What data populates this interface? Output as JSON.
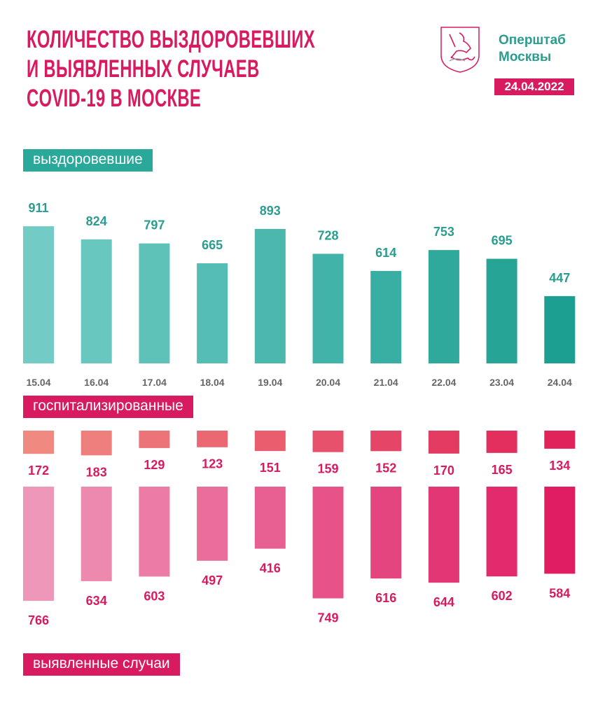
{
  "header": {
    "title_lines": [
      "КОЛИЧЕСТВО ВЫЗДОРОВЕВШИХ",
      "И ВЫЯВЛЕННЫХ СЛУЧАЕВ",
      "COVID-19 В МОСКВЕ"
    ],
    "org_lines": [
      "Оперштаб",
      "Москвы"
    ],
    "date": "24.04.2022",
    "logo_icon": "moscow-coat-of-arms-icon"
  },
  "colors": {
    "title": "#d81b60",
    "teal": "#2aa89a",
    "pink": "#d81b60"
  },
  "chart_data": {
    "type": "bar",
    "title": "Количество выздоровевших и выявленных случаев COVID-19 в Москве",
    "categories": [
      "15.04",
      "16.04",
      "17.04",
      "18.04",
      "19.04",
      "20.04",
      "21.04",
      "22.04",
      "23.04",
      "24.04"
    ],
    "series": [
      {
        "name": "выздоровевшие",
        "values": [
          911,
          824,
          797,
          665,
          893,
          728,
          614,
          753,
          695,
          447
        ],
        "color_from": "#72ccc5",
        "color_to": "#1c9f90"
      },
      {
        "name": "госпитализированные",
        "values": [
          172,
          183,
          129,
          123,
          151,
          159,
          152,
          170,
          165,
          134
        ],
        "color_from": "#f08a80",
        "color_to": "#e0245a"
      },
      {
        "name": "выявленные случаи",
        "values": [
          766,
          634,
          603,
          497,
          416,
          749,
          616,
          644,
          602,
          584
        ],
        "color_from": "#ef97b8",
        "color_to": "#e01c62"
      }
    ]
  }
}
